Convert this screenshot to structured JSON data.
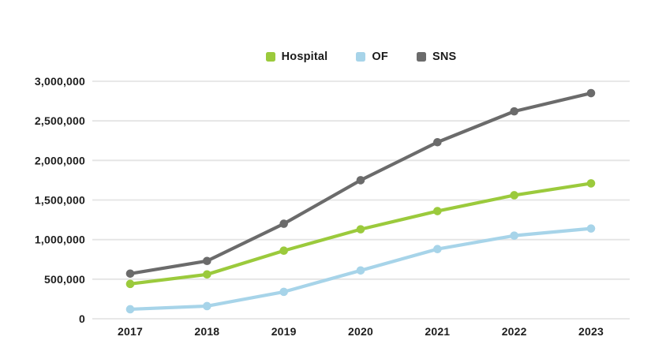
{
  "page": {
    "background": "#ffffff",
    "text_color": "#1d1d1d",
    "gridline_color": "#e4e4e4"
  },
  "chart_data": {
    "type": "line",
    "title": "",
    "xlabel": "",
    "ylabel": "",
    "x_categories": [
      "2017",
      "2018",
      "2019",
      "2020",
      "2021",
      "2022",
      "2023"
    ],
    "series": [
      {
        "name": "Hospital",
        "color": "#9BCA3C",
        "values": [
          440000,
          560000,
          860000,
          1130000,
          1360000,
          1560000,
          1710000
        ]
      },
      {
        "name": "OF",
        "color": "#A7D4E9",
        "values": [
          120000,
          160000,
          340000,
          610000,
          880000,
          1050000,
          1140000
        ]
      },
      {
        "name": "SNS",
        "color": "#6B6B6B",
        "values": [
          570000,
          730000,
          1200000,
          1750000,
          2230000,
          2620000,
          2850000
        ]
      }
    ],
    "y_axis": {
      "min": 0,
      "max": 3000000,
      "tick_step": 500000,
      "tick_labels": [
        "0",
        "500,000",
        "1,000,000",
        "1,500,000",
        "2,000,000",
        "2,500,000",
        "3,000,000"
      ]
    },
    "grid": {
      "horizontal": true,
      "vertical": false
    },
    "legend": {
      "position": "top"
    },
    "marker": "circle"
  }
}
